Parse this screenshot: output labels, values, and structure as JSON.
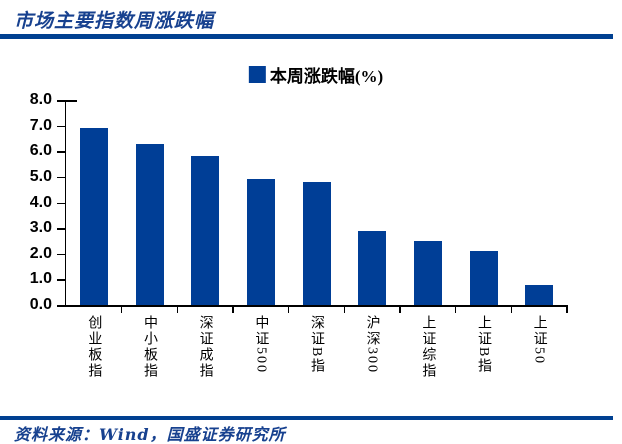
{
  "accent_color": "#003E96",
  "header": {
    "title": "市场主要指数周涨跌幅"
  },
  "legend": {
    "label": "本周涨跌幅(%)",
    "swatch_color": "#003E96"
  },
  "chart_data": {
    "type": "bar",
    "title": "市场主要指数周涨跌幅",
    "series_name": "本周涨跌幅(%)",
    "categories": [
      "创业板指",
      "中小板指",
      "深证成指",
      "中证500",
      "深证B指",
      "沪深300",
      "上证综指",
      "上证B指",
      "上证50"
    ],
    "values": [
      6.9,
      6.3,
      5.8,
      4.9,
      4.8,
      2.9,
      2.5,
      2.1,
      0.8
    ],
    "xlabel": "",
    "ylabel": "",
    "ylim": [
      0,
      8
    ],
    "ytick_step": 1.0,
    "ytick_labels": [
      "8.0",
      "7.0",
      "6.0",
      "5.0",
      "4.0",
      "3.0",
      "2.0",
      "1.0",
      "0.0"
    ],
    "bar_color": "#003E96",
    "axis_color": "#000000",
    "grid": false,
    "legend_position": "top-center",
    "x_label_orientation": "vertical"
  },
  "footer": {
    "source": "资料来源：Wind，国盛证券研究所"
  }
}
